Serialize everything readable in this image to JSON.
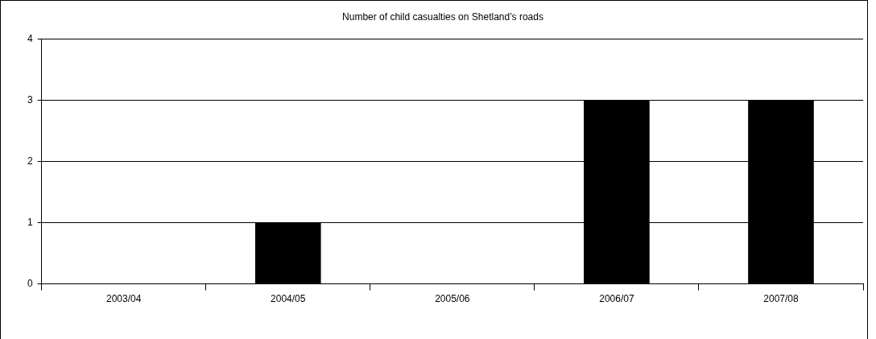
{
  "chart_data": {
    "type": "bar",
    "title": "Number of child casualties on Shetland’s roads",
    "categories": [
      "2003/04",
      "2004/05",
      "2005/06",
      "2006/07",
      "2007/08"
    ],
    "values": [
      0,
      1,
      0,
      3,
      3
    ],
    "color": "#000000",
    "ylim": [
      0,
      4
    ],
    "yticks": [
      0,
      1,
      2,
      3,
      4
    ],
    "grid": "y",
    "legend": false
  }
}
